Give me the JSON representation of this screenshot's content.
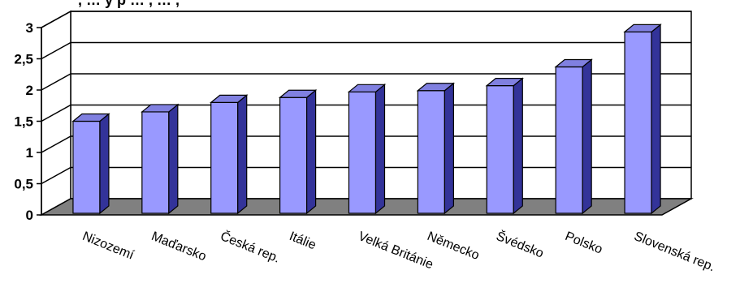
{
  "chart_data": {
    "type": "bar",
    "style": "3d",
    "categories": [
      "Nizozemí",
      "Maďarsko",
      "Česká rep.",
      "Itálie",
      "Velká Británie",
      "Německo",
      "Švédsko",
      "Polsko",
      "Slovenská rep."
    ],
    "values": [
      1.5,
      1.65,
      1.8,
      1.88,
      1.97,
      1.99,
      2.07,
      2.37,
      2.93
    ],
    "yticks": [
      "0",
      "0,5",
      "1",
      "1,5",
      "2",
      "2,5",
      "3"
    ],
    "ylim": [
      0,
      3
    ],
    "grid": true,
    "title": ", … y p … , … ,",
    "colors": {
      "bar_front": "#9999ff",
      "bar_side": "#333399",
      "bar_top": "#8080e0",
      "floor": "#808080",
      "back_wall": "#ffffff",
      "gridline": "#000000"
    }
  }
}
